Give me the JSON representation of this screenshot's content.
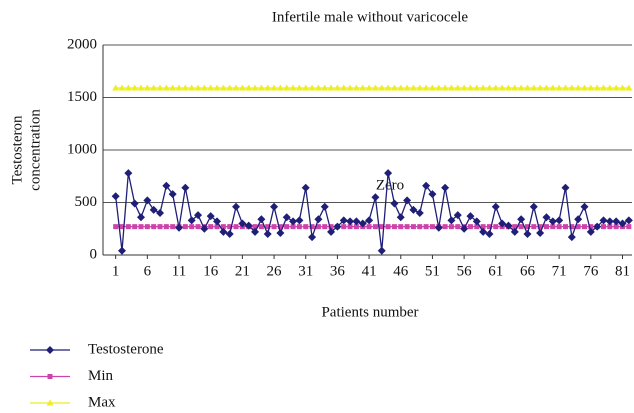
{
  "chart_data": {
    "type": "line",
    "title": "Infertile male without varicocele",
    "xlabel": "Patients number",
    "ylabel": [
      "Testosteron",
      "concentration"
    ],
    "annotations": [
      "Zero"
    ],
    "x": [
      1,
      2,
      3,
      4,
      5,
      6,
      7,
      8,
      9,
      10,
      11,
      12,
      13,
      14,
      15,
      16,
      17,
      18,
      19,
      20,
      21,
      22,
      23,
      24,
      25,
      26,
      27,
      28,
      29,
      30,
      31,
      32,
      33,
      34,
      35,
      36,
      37,
      38,
      39,
      40,
      41,
      42,
      43,
      44,
      45,
      46,
      47,
      48,
      49,
      50,
      51,
      52,
      53,
      54,
      55,
      56,
      57,
      58,
      59,
      60,
      61,
      62,
      63,
      64,
      65,
      66,
      67,
      68,
      69,
      70,
      71,
      72,
      73,
      74,
      75,
      76,
      77,
      78,
      79,
      80,
      81,
      82
    ],
    "xlim": [
      -1,
      82.5
    ],
    "xticks": [
      1,
      6,
      11,
      16,
      21,
      26,
      31,
      36,
      41,
      46,
      51,
      56,
      61,
      66,
      71,
      76,
      81
    ],
    "ylim": [
      0,
      2000
    ],
    "yticks": [
      0,
      500,
      1000,
      1500,
      2000
    ],
    "grid": true,
    "legend": "bottom-left",
    "series": [
      {
        "name": "Testosterone",
        "color": "#1f1f78",
        "marker": "diamond",
        "values": [
          560,
          40,
          780,
          490,
          360,
          520,
          430,
          400,
          660,
          580,
          260,
          640,
          330,
          380,
          250,
          370,
          320,
          220,
          200,
          460,
          300,
          280,
          220,
          340,
          200,
          460,
          210,
          360,
          320,
          330,
          640,
          170,
          340,
          460,
          220,
          270,
          330,
          320,
          320,
          300,
          330,
          550,
          40,
          780,
          490,
          360,
          520,
          430,
          400,
          660,
          580,
          260,
          640,
          330,
          380,
          250,
          370,
          320,
          220,
          200,
          460,
          300,
          280,
          220,
          340,
          200,
          460,
          210,
          360,
          320,
          330,
          640,
          170,
          340,
          460,
          220,
          270,
          330,
          320,
          320,
          300,
          330
        ]
      },
      {
        "name": "Min",
        "color": "#cc44aa",
        "marker": "square",
        "values": [
          270,
          270,
          270,
          270,
          270,
          270,
          270,
          270,
          270,
          270,
          270,
          270,
          270,
          270,
          270,
          270,
          270,
          270,
          270,
          270,
          270,
          270,
          270,
          270,
          270,
          270,
          270,
          270,
          270,
          270,
          270,
          270,
          270,
          270,
          270,
          270,
          270,
          270,
          270,
          270,
          270,
          270,
          270,
          270,
          270,
          270,
          270,
          270,
          270,
          270,
          270,
          270,
          270,
          270,
          270,
          270,
          270,
          270,
          270,
          270,
          270,
          270,
          270,
          270,
          270,
          270,
          270,
          270,
          270,
          270,
          270,
          270,
          270,
          270,
          270,
          270,
          270,
          270,
          270,
          270,
          270,
          270
        ]
      },
      {
        "name": "Max",
        "color": "#eeee22",
        "marker": "triangle",
        "values": [
          1590,
          1590,
          1590,
          1590,
          1590,
          1590,
          1590,
          1590,
          1590,
          1590,
          1590,
          1590,
          1590,
          1590,
          1590,
          1590,
          1590,
          1590,
          1590,
          1590,
          1590,
          1590,
          1590,
          1590,
          1590,
          1590,
          1590,
          1590,
          1590,
          1590,
          1590,
          1590,
          1590,
          1590,
          1590,
          1590,
          1590,
          1590,
          1590,
          1590,
          1590,
          1590,
          1590,
          1590,
          1590,
          1590,
          1590,
          1590,
          1590,
          1590,
          1590,
          1590,
          1590,
          1590,
          1590,
          1590,
          1590,
          1590,
          1590,
          1590,
          1590,
          1590,
          1590,
          1590,
          1590,
          1590,
          1590,
          1590,
          1590,
          1590,
          1590,
          1590,
          1590,
          1590,
          1590,
          1590,
          1590,
          1590,
          1590,
          1590,
          1590,
          1590
        ]
      }
    ]
  }
}
